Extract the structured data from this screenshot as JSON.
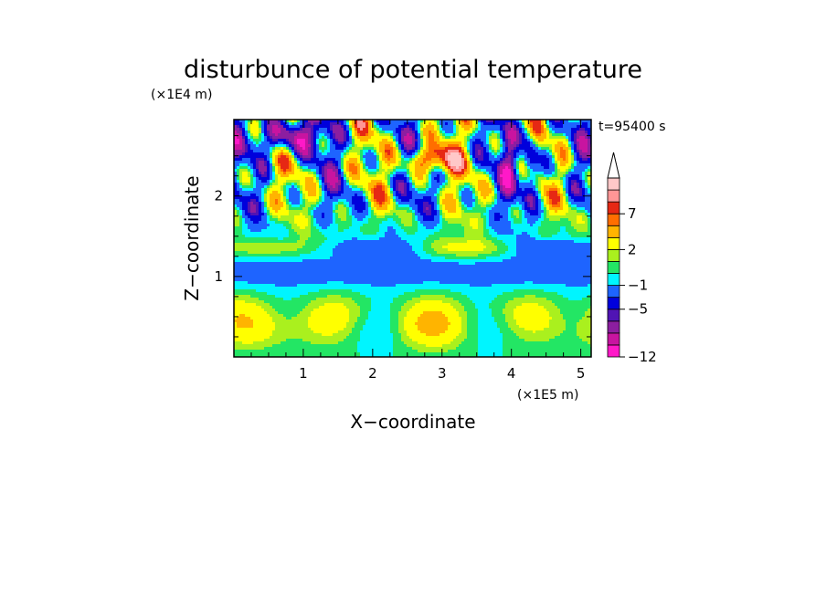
{
  "chart_data": {
    "type": "heatmap",
    "title": "disturbunce of potential temperature",
    "ylabel": "Z−coordinate",
    "xlabel": "X−coordinate",
    "y_unit": "(×1E4 m)",
    "x_unit": "(×1E5 m)",
    "time_label": "t=95400 s",
    "xlim": [
      0,
      5.15
    ],
    "ylim": [
      0,
      2.95
    ],
    "x_ticks": [
      {
        "value": 1,
        "label": "1"
      },
      {
        "value": 2,
        "label": "2"
      },
      {
        "value": 3,
        "label": "3"
      },
      {
        "value": 4,
        "label": "4"
      },
      {
        "value": 5,
        "label": "5"
      }
    ],
    "y_ticks": [
      {
        "value": 1,
        "label": "1"
      },
      {
        "value": 2,
        "label": "2"
      }
    ],
    "colorbar": {
      "levels": [
        -12,
        -10,
        -8,
        -6,
        -5,
        -3,
        -1,
        0,
        1,
        2,
        4,
        6,
        7,
        9,
        11
      ],
      "colors": [
        "#ff19c8",
        "#c814a0",
        "#8c1ea0",
        "#5014b4",
        "#0000dc",
        "#1e64ff",
        "#00f5ff",
        "#23e664",
        "#aaf01e",
        "#ffff00",
        "#ffb400",
        "#ff6e00",
        "#e62814",
        "#ff9696",
        "#ffc8c8"
      ],
      "labeled": [
        {
          "value": "7",
          "index": 12
        },
        {
          "value": "2",
          "index": 9
        },
        {
          "value": "−1",
          "index": 6
        },
        {
          "value": "−5",
          "index": 4
        },
        {
          "value": "−12",
          "index": 0
        }
      ],
      "extend_max": true
    }
  }
}
